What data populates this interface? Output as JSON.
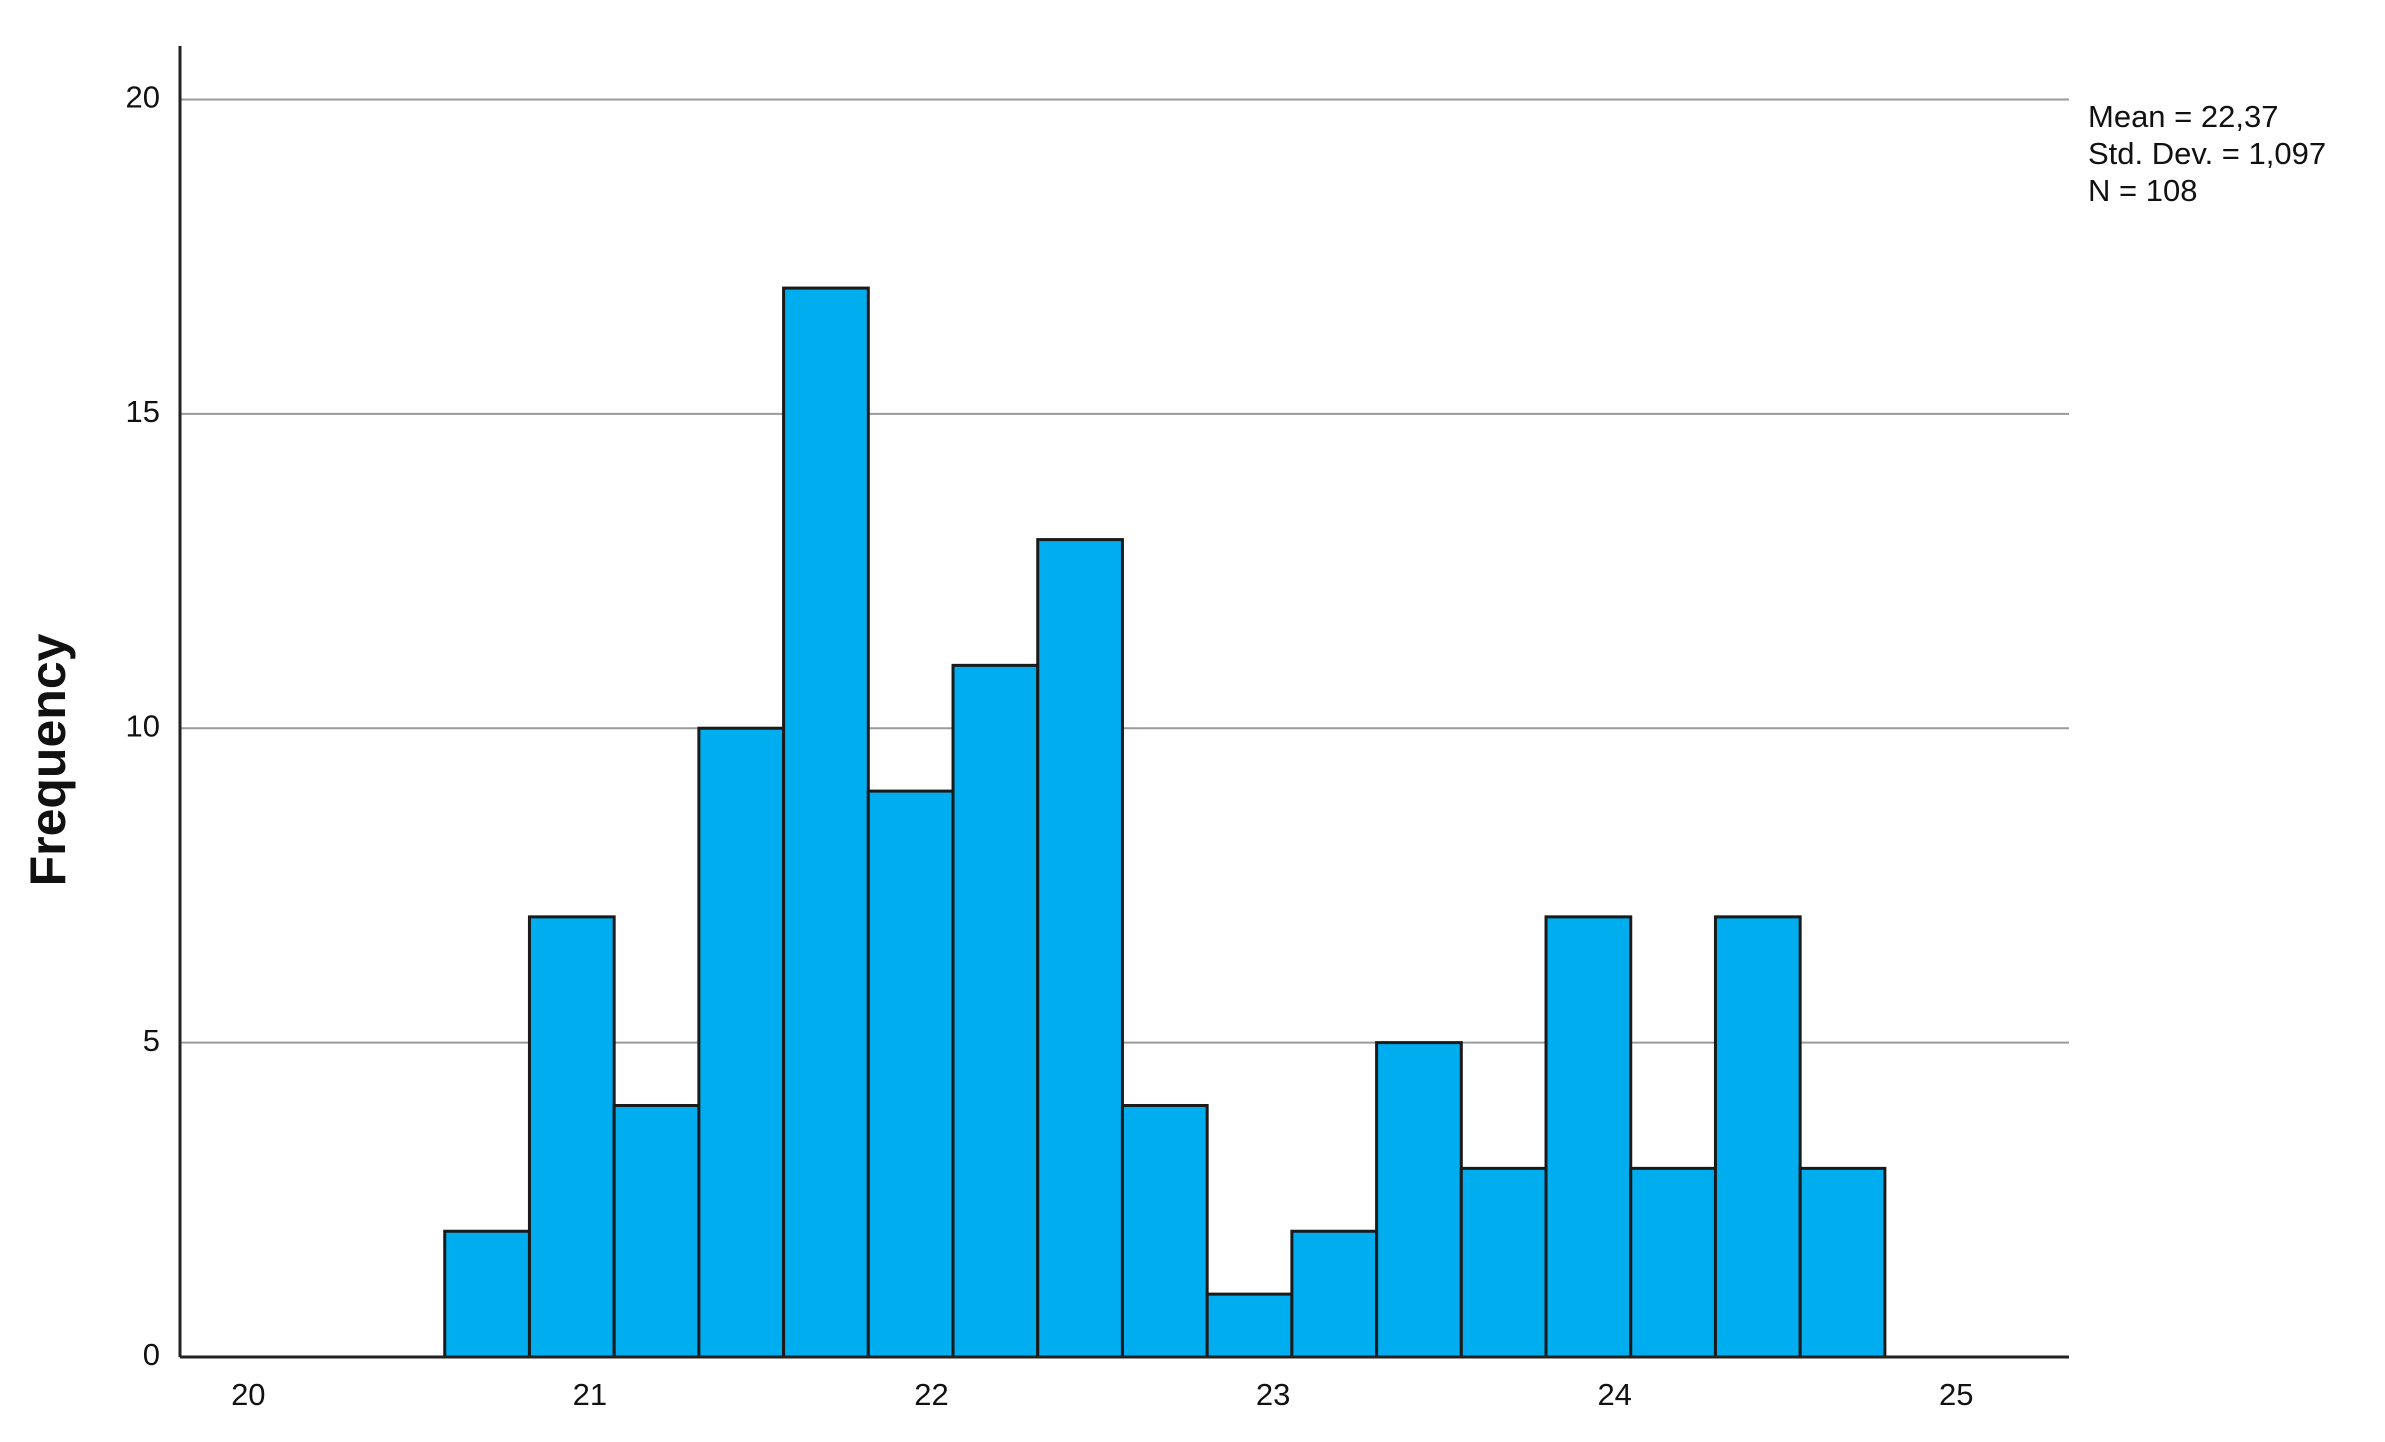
{
  "chart_data": {
    "type": "histogram",
    "y_label": "Frequency",
    "annotations": [
      "Mean = 22,37",
      "Std. Dev. = 1,097",
      "N = 108"
    ],
    "bins": [
      20.575,
      20.823,
      21.071,
      21.319,
      21.567,
      21.815,
      22.063,
      22.311,
      22.559,
      22.807,
      23.055,
      23.303,
      23.551,
      23.799,
      24.047,
      24.295,
      24.543,
      24.791
    ],
    "values": [
      2,
      7,
      4,
      10,
      17,
      9,
      11,
      13,
      4,
      1,
      2,
      5,
      3,
      7,
      3,
      7,
      3
    ],
    "color": "#00adef",
    "xlim": [
      19.8,
      25.33
    ],
    "xticks": [
      20,
      21,
      22,
      23,
      24,
      25
    ],
    "ylim": [
      0,
      20.85
    ],
    "yticks": [
      0,
      5,
      10,
      15,
      20
    ],
    "grid": true
  }
}
